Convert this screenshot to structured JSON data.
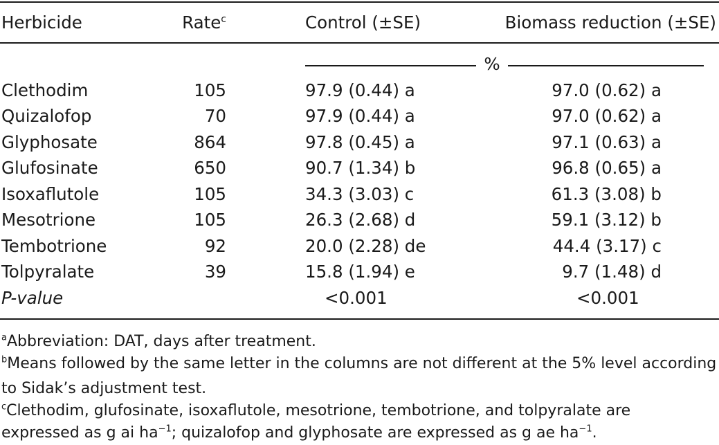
{
  "table": {
    "headers": {
      "herbicide": "Herbicide",
      "rate": "Rate",
      "rate_sup": "c",
      "control": "Control (±SE)",
      "biomass": "Biomass reduction (±SE)"
    },
    "unit_label": "%",
    "rows": [
      {
        "herbicide": "Clethodim",
        "rate": "105",
        "control": "97.9 (0.44) a",
        "biomass": "97.0 (0.62) a"
      },
      {
        "herbicide": "Quizalofop",
        "rate": "70",
        "control": "97.9 (0.44) a",
        "biomass": "97.0 (0.62) a"
      },
      {
        "herbicide": "Glyphosate",
        "rate": "864",
        "control": "97.8 (0.45) a",
        "biomass": "97.1 (0.63) a"
      },
      {
        "herbicide": "Glufosinate",
        "rate": "650",
        "control": "90.7 (1.34) b",
        "biomass": "96.8 (0.65) a"
      },
      {
        "herbicide": "Isoxaflutole",
        "rate": "105",
        "control": "34.3 (3.03) c",
        "biomass": "61.3 (3.08) b"
      },
      {
        "herbicide": "Mesotrione",
        "rate": "105",
        "control": "26.3 (2.68) d",
        "biomass": "59.1 (3.12) b"
      },
      {
        "herbicide": "Tembotrione",
        "rate": "92",
        "control": "20.0 (2.28) de",
        "biomass": "44.4 (3.17) c"
      },
      {
        "herbicide": "Tolpyralate",
        "rate": "39",
        "control": "15.8 (1.94) e",
        "biomass": "9.7 (1.48) d"
      }
    ],
    "p_value": {
      "label": "P-value",
      "control": "<0.001",
      "biomass": "<0.001"
    }
  },
  "footnotes": {
    "a": {
      "mark": "a",
      "text": "Abbreviation: DAT, days after treatment."
    },
    "b": {
      "mark": "b",
      "line1": "Means followed by the same letter in the columns are not different at the 5% level according",
      "line2": "to Sidak’s adjustment test."
    },
    "c": {
      "mark": "c",
      "line1": "Clethodim, glufosinate, isoxaflutole, mesotrione, tembotrione, and tolpyralate are",
      "line2a": "expressed as g ai ha",
      "exp1": "−1",
      "line2b": "; quizalofop and glyphosate are expressed as g ae ha",
      "exp2": "−1",
      "line2c": "."
    }
  }
}
